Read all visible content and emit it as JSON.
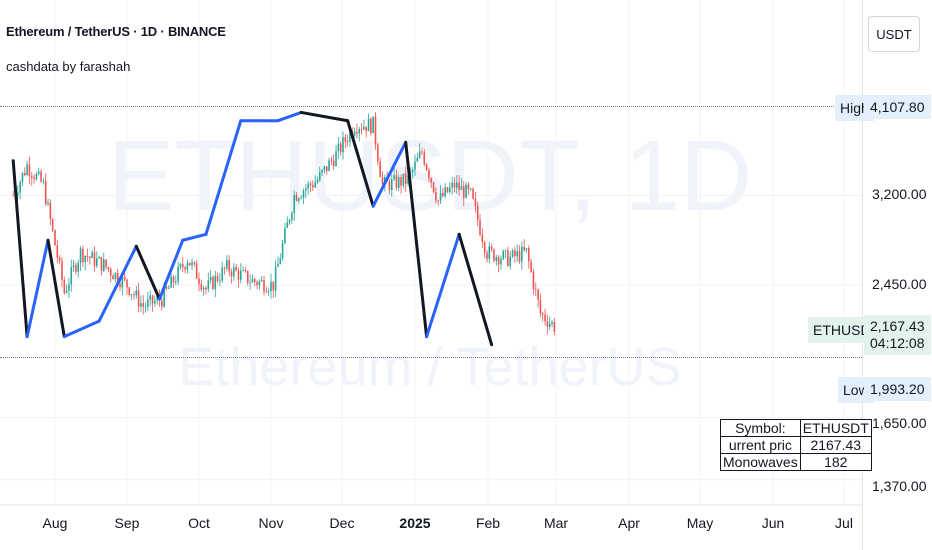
{
  "header": {
    "title": "Ethereum / TetherUS · 1D · BINANCE",
    "indicator": "cashdata by farashah"
  },
  "currency_button": "USDT",
  "watermark": {
    "symbol": "ETHUSDT, 1D",
    "name": "Ethereum / TetherUS"
  },
  "price_axis": {
    "labels": [
      "3,200.00",
      "2,450.00",
      "1,650.00",
      "1,370.00"
    ],
    "high": {
      "tag": "High",
      "value": "4,107.80"
    },
    "low": {
      "tag": "Low",
      "value": "1,993.20"
    },
    "current": {
      "tag": "ETHUSDT",
      "value": "2,167.43",
      "countdown": "04:12:08"
    }
  },
  "time_axis": [
    "Aug",
    "Sep",
    "Oct",
    "Nov",
    "Dec",
    "2025",
    "Feb",
    "Mar",
    "Apr",
    "May",
    "Jun",
    "Jul"
  ],
  "info_table": {
    "rows": [
      {
        "key": "Symbol:",
        "value": "ETHUSDT"
      },
      {
        "key": "urrent pric",
        "value": "2167.43"
      },
      {
        "key": "Monowaves",
        "value": "182"
      }
    ]
  },
  "colors": {
    "up": "#26a69a",
    "down": "#ef5350",
    "wave_up": "#2962ff",
    "wave_down": "#131722"
  },
  "chart_data": {
    "type": "candlestick",
    "title": "Ethereum / TetherUS · 1D · BINANCE",
    "y_scale": "log",
    "y_ticks": [
      3200,
      2450,
      1650,
      1370
    ],
    "ylim": [
      1330,
      5200
    ],
    "x_ticks": [
      "Aug",
      "Sep",
      "Oct",
      "Nov",
      "Dec",
      "2025",
      "Feb",
      "Mar",
      "Apr",
      "May",
      "Jun",
      "Jul"
    ],
    "high_line": 4107.8,
    "low_line": 1993.2,
    "current_price": 2167.43,
    "price_path": [
      [
        "2024-07-14",
        3200
      ],
      [
        "2024-07-20",
        3500
      ],
      [
        "2024-07-27",
        3300
      ],
      [
        "2024-08-05",
        2400
      ],
      [
        "2024-08-12",
        2700
      ],
      [
        "2024-08-22",
        2600
      ],
      [
        "2024-09-01",
        2450
      ],
      [
        "2024-09-08",
        2300
      ],
      [
        "2024-09-16",
        2350
      ],
      [
        "2024-09-27",
        2650
      ],
      [
        "2024-10-05",
        2420
      ],
      [
        "2024-10-14",
        2580
      ],
      [
        "2024-10-25",
        2480
      ],
      [
        "2024-11-03",
        2450
      ],
      [
        "2024-11-12",
        3200
      ],
      [
        "2024-11-22",
        3350
      ],
      [
        "2024-12-01",
        3650
      ],
      [
        "2024-12-08",
        3950
      ],
      [
        "2024-12-16",
        3950
      ],
      [
        "2024-12-20",
        3300
      ],
      [
        "2024-12-31",
        3350
      ],
      [
        "2025-01-06",
        3650
      ],
      [
        "2025-01-13",
        3150
      ],
      [
        "2025-01-20",
        3300
      ],
      [
        "2025-01-27",
        3200
      ],
      [
        "2025-02-03",
        2700
      ],
      [
        "2025-02-12",
        2650
      ],
      [
        "2025-02-20",
        2700
      ],
      [
        "2025-02-26",
        2250
      ],
      [
        "2025-03-04",
        2167
      ]
    ],
    "monowaves": [
      [
        "2024-07-14",
        3550
      ],
      [
        "2024-07-20",
        2100
      ],
      [
        "2024-07-29",
        2800
      ],
      [
        "2024-08-05",
        2100
      ],
      [
        "2024-08-20",
        2200
      ],
      [
        "2024-09-05",
        2750
      ],
      [
        "2024-09-15",
        2350
      ],
      [
        "2024-09-25",
        2800
      ],
      [
        "2024-10-05",
        2850
      ],
      [
        "2024-10-20",
        4000
      ],
      [
        "2024-11-05",
        4000
      ],
      [
        "2024-11-15",
        4100
      ],
      [
        "2024-12-05",
        4000
      ],
      [
        "2024-12-16",
        3100
      ],
      [
        "2024-12-30",
        3750
      ],
      [
        "2025-01-08",
        2100
      ],
      [
        "2025-01-22",
        2850
      ],
      [
        "2025-02-05",
        2050
      ]
    ]
  }
}
